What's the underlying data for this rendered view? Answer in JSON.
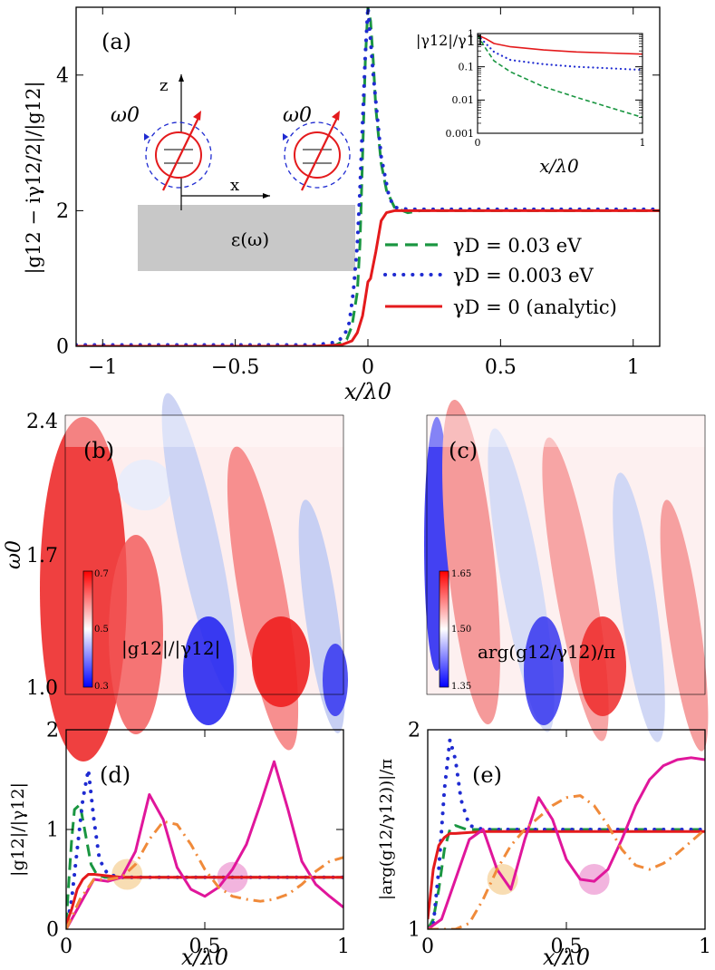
{
  "colors": {
    "green": "#1a9641",
    "blue": "#1f2bd1",
    "red": "#e41a1c",
    "magenta": "#e0169b",
    "orange": "#f08a3a",
    "gray": "#c8c8c8",
    "circle_orange": "#f6d29a",
    "circle_pink": "#ee9bd3"
  },
  "chart_data": [
    {
      "panel": "(a)",
      "type": "line",
      "xlabel": "x/λ0",
      "ylabel": "|g12 − iγ12/2|/|g12|",
      "xlim": [
        -1.1,
        1.1
      ],
      "ylim": [
        0,
        5
      ],
      "xticks": [
        -1,
        -0.5,
        0,
        0.5,
        1
      ],
      "xtick_labels": [
        "−1",
        "−0.5",
        "0",
        "0.5",
        "1"
      ],
      "yticks": [
        0,
        2,
        4
      ],
      "ytick_labels": [
        "0",
        "2",
        "4"
      ],
      "series": [
        {
          "name": "γD = 0.03 eV",
          "style": "dashed",
          "color": "green",
          "x": [
            -1.1,
            -0.2,
            -0.12,
            -0.08,
            -0.06,
            -0.04,
            -0.03,
            -0.02,
            -0.01,
            0.0,
            0.01,
            0.02,
            0.03,
            0.05,
            0.07,
            0.1,
            0.15,
            0.2,
            1.1
          ],
          "y": [
            0,
            0,
            0.02,
            0.1,
            0.3,
            0.8,
            1.5,
            2.8,
            4.2,
            5.0,
            4.8,
            4.2,
            3.5,
            2.7,
            2.3,
            2.05,
            1.97,
            2.0,
            2.0
          ]
        },
        {
          "name": "γD = 0.003 eV",
          "style": "dotted",
          "color": "blue",
          "x": [
            -1.1,
            -0.2,
            -0.12,
            -0.09,
            -0.07,
            -0.055,
            -0.04,
            -0.03,
            -0.02,
            -0.01,
            0.0,
            0.02,
            0.05,
            0.08,
            0.1,
            0.15,
            1.1
          ],
          "y": [
            0.02,
            0.02,
            0.06,
            0.15,
            0.35,
            0.8,
            1.5,
            2.3,
            3.3,
            4.3,
            5.0,
            4.0,
            2.8,
            2.2,
            2.05,
            2.02,
            2.02
          ]
        },
        {
          "name": "γD = 0 (analytic)",
          "style": "solid",
          "color": "red",
          "x": [
            -1.1,
            -0.2,
            -0.1,
            -0.06,
            -0.04,
            -0.02,
            -0.01,
            0.0,
            0.01,
            0.03,
            0.05,
            0.07,
            0.1,
            0.15,
            1.1
          ],
          "y": [
            0,
            0,
            0.02,
            0.08,
            0.2,
            0.45,
            0.7,
            0.95,
            1.0,
            1.4,
            1.85,
            1.97,
            2.0,
            2.0,
            2.0
          ]
        }
      ],
      "inset": {
        "ylabel": "|γ12|/γ11",
        "xlabel": "x/λ0",
        "xlim": [
          0,
          1
        ],
        "ylim": [
          0.001,
          1
        ],
        "scale": "log",
        "xticks": [
          0,
          1
        ],
        "xtick_labels": [
          "0",
          "1"
        ],
        "yticks": [
          0.001,
          0.01,
          0.1,
          1
        ],
        "ytick_labels": [
          "0.001",
          "0.01",
          "0.1",
          "1"
        ],
        "series": [
          {
            "color": "red",
            "style": "solid",
            "x": [
              0,
              0.05,
              0.1,
              0.2,
              0.4,
              0.6,
              0.8,
              1.0
            ],
            "y": [
              0.9,
              0.7,
              0.5,
              0.4,
              0.32,
              0.28,
              0.26,
              0.24
            ]
          },
          {
            "color": "blue",
            "style": "dotted",
            "x": [
              0,
              0.05,
              0.1,
              0.2,
              0.4,
              0.6,
              0.8,
              1.0
            ],
            "y": [
              0.9,
              0.5,
              0.28,
              0.16,
              0.12,
              0.1,
              0.09,
              0.08
            ]
          },
          {
            "color": "green",
            "style": "dashed",
            "x": [
              0,
              0.05,
              0.1,
              0.2,
              0.4,
              0.6,
              0.8,
              1.0
            ],
            "y": [
              0.9,
              0.35,
              0.15,
              0.07,
              0.025,
              0.012,
              0.006,
              0.003
            ]
          }
        ]
      },
      "schematic": {
        "axis_z": "z",
        "axis_x": "x",
        "omega_label": "ω0",
        "substrate_label": "ε(ω)"
      }
    },
    {
      "panel": "(b)",
      "type": "heatmap",
      "ylabel": "ω0",
      "yticks": [
        1.0,
        1.7,
        2.4
      ],
      "ytick_labels": [
        "1.0",
        "1.7",
        "2.4"
      ],
      "colorbar_label": "|g12|/|γ12|",
      "colorbar_ticks": [
        "0.7",
        "0.5",
        "0.3"
      ],
      "colorbar_range": [
        0.3,
        0.7
      ]
    },
    {
      "panel": "(c)",
      "type": "heatmap",
      "colorbar_label": "arg(g12/γ12)/π",
      "colorbar_ticks": [
        "1.65",
        "1.50",
        "1.35"
      ],
      "colorbar_range": [
        1.35,
        1.65
      ]
    },
    {
      "panel": "(d)",
      "type": "line",
      "xlabel": "x/λ0",
      "ylabel": "|g12|/|γ12|",
      "xlim": [
        0,
        1
      ],
      "ylim": [
        0,
        2
      ],
      "xticks": [
        0,
        0.5,
        1
      ],
      "xtick_labels": [
        "0",
        "0.5",
        "1"
      ],
      "yticks": [
        0,
        1,
        2
      ],
      "ytick_labels": [
        "0",
        "1",
        "2"
      ],
      "series": [
        {
          "color": "green",
          "style": "dashed",
          "x": [
            0,
            0.01,
            0.02,
            0.03,
            0.05,
            0.07,
            0.09,
            0.11,
            0.14,
            0.2,
            1
          ],
          "y": [
            0.05,
            0.5,
            0.9,
            1.2,
            1.25,
            0.95,
            0.65,
            0.55,
            0.52,
            0.52,
            0.52
          ]
        },
        {
          "color": "blue",
          "style": "dotted",
          "x": [
            0,
            0.02,
            0.04,
            0.06,
            0.08,
            0.1,
            0.12,
            0.15,
            0.2,
            1
          ],
          "y": [
            0.0,
            0.3,
            0.8,
            1.3,
            1.6,
            1.1,
            0.7,
            0.55,
            0.52,
            0.52
          ]
        },
        {
          "color": "red",
          "style": "solid",
          "x": [
            0,
            0.02,
            0.04,
            0.06,
            0.08,
            0.1,
            0.2,
            1
          ],
          "y": [
            0.05,
            0.2,
            0.4,
            0.5,
            0.55,
            0.55,
            0.52,
            0.52
          ]
        },
        {
          "color": "magenta",
          "style": "solid",
          "x": [
            0,
            0.05,
            0.1,
            0.15,
            0.2,
            0.25,
            0.3,
            0.35,
            0.4,
            0.45,
            0.5,
            0.55,
            0.6,
            0.65,
            0.7,
            0.75,
            0.8,
            0.85,
            0.9,
            0.95,
            1.0
          ],
          "y": [
            0.0,
            0.25,
            0.5,
            0.48,
            0.52,
            0.78,
            1.35,
            1.1,
            0.62,
            0.4,
            0.33,
            0.42,
            0.6,
            0.85,
            1.25,
            1.68,
            1.2,
            0.68,
            0.45,
            0.33,
            0.22
          ]
        },
        {
          "color": "orange",
          "style": "dashdot",
          "x": [
            0,
            0.05,
            0.1,
            0.15,
            0.2,
            0.25,
            0.3,
            0.35,
            0.4,
            0.45,
            0.5,
            0.55,
            0.6,
            0.65,
            0.7,
            0.75,
            0.8,
            0.85,
            0.9,
            0.95,
            1.0
          ],
          "y": [
            0.0,
            0.3,
            0.5,
            0.5,
            0.52,
            0.65,
            0.9,
            1.08,
            1.05,
            0.85,
            0.6,
            0.42,
            0.33,
            0.3,
            0.28,
            0.3,
            0.35,
            0.45,
            0.58,
            0.68,
            0.72
          ]
        }
      ],
      "markers": [
        {
          "x": 0.22,
          "y": 0.55,
          "color": "circle_orange"
        },
        {
          "x": 0.6,
          "y": 0.52,
          "color": "circle_pink"
        }
      ]
    },
    {
      "panel": "(e)",
      "type": "line",
      "xlabel": "x/λ0",
      "ylabel": "|arg(g12/γ12))|/π",
      "xlim": [
        0,
        1
      ],
      "ylim": [
        1,
        2
      ],
      "xticks": [
        0,
        0.5,
        1
      ],
      "xtick_labels": [
        "0",
        "0.5",
        "1"
      ],
      "yticks": [
        1,
        2
      ],
      "ytick_labels": [
        "1",
        "2"
      ],
      "series": [
        {
          "color": "green",
          "style": "dashed",
          "x": [
            0,
            0.02,
            0.04,
            0.06,
            0.08,
            0.1,
            0.14,
            0.2,
            1
          ],
          "y": [
            1.0,
            1.05,
            1.2,
            1.4,
            1.5,
            1.52,
            1.5,
            1.5,
            1.5
          ]
        },
        {
          "color": "blue",
          "style": "dotted",
          "x": [
            0,
            0.02,
            0.04,
            0.06,
            0.08,
            0.1,
            0.12,
            0.15,
            0.2,
            1
          ],
          "y": [
            1.0,
            1.02,
            1.3,
            1.7,
            1.95,
            1.85,
            1.65,
            1.52,
            1.5,
            1.5
          ]
        },
        {
          "color": "red",
          "style": "solid",
          "x": [
            0,
            0.02,
            0.04,
            0.06,
            0.08,
            0.1,
            0.2,
            1
          ],
          "y": [
            1.05,
            1.3,
            1.42,
            1.46,
            1.48,
            1.48,
            1.49,
            1.49
          ]
        },
        {
          "color": "magenta",
          "style": "solid",
          "x": [
            0,
            0.05,
            0.1,
            0.15,
            0.2,
            0.25,
            0.3,
            0.35,
            0.4,
            0.45,
            0.5,
            0.55,
            0.6,
            0.65,
            0.7,
            0.75,
            0.8,
            0.85,
            0.9,
            0.95,
            1.0
          ],
          "y": [
            1.0,
            1.05,
            1.25,
            1.45,
            1.5,
            1.3,
            1.2,
            1.45,
            1.66,
            1.55,
            1.35,
            1.25,
            1.24,
            1.3,
            1.45,
            1.62,
            1.75,
            1.82,
            1.85,
            1.86,
            1.85
          ]
        },
        {
          "color": "orange",
          "style": "dashdot",
          "x": [
            0,
            0.05,
            0.1,
            0.15,
            0.2,
            0.25,
            0.3,
            0.35,
            0.4,
            0.45,
            0.5,
            0.55,
            0.6,
            0.65,
            0.7,
            0.75,
            0.8,
            0.85,
            0.9,
            0.95,
            1.0
          ],
          "y": [
            1.0,
            1.0,
            1.0,
            1.03,
            1.15,
            1.3,
            1.42,
            1.5,
            1.56,
            1.62,
            1.66,
            1.67,
            1.62,
            1.52,
            1.4,
            1.32,
            1.3,
            1.33,
            1.38,
            1.44,
            1.5
          ]
        }
      ],
      "markers": [
        {
          "x": 0.27,
          "y": 1.25,
          "color": "circle_orange"
        },
        {
          "x": 0.6,
          "y": 1.25,
          "color": "circle_pink"
        }
      ]
    }
  ]
}
